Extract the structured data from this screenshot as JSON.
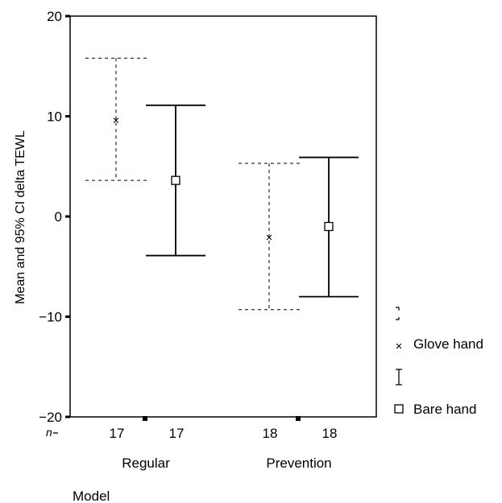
{
  "chart_data": {
    "type": "error-bar",
    "title": "",
    "ylabel": "Mean and 95% CI delta TEWL",
    "xlabel": "Model",
    "ylim": [
      -20,
      20
    ],
    "yticks": [
      20,
      10,
      0,
      -10,
      -20
    ],
    "yticklabels": [
      "20",
      "10",
      "0",
      "−10",
      "−20"
    ],
    "n_label": "n",
    "groups": [
      "Regular",
      "Prevention"
    ],
    "series": [
      {
        "name": "Glove hand",
        "marker": "x",
        "line": "dashed",
        "mean": [
          9.6,
          -2.1
        ],
        "lower": [
          3.6,
          -9.3
        ],
        "upper": [
          15.8,
          5.3
        ],
        "n": [
          "17",
          "18"
        ]
      },
      {
        "name": "Bare hand",
        "marker": "square",
        "line": "solid",
        "mean": [
          3.6,
          -1.0
        ],
        "lower": [
          -3.9,
          -8.0
        ],
        "upper": [
          11.1,
          5.9
        ],
        "n": [
          "17",
          "18"
        ]
      }
    ],
    "legend_position": "right"
  }
}
